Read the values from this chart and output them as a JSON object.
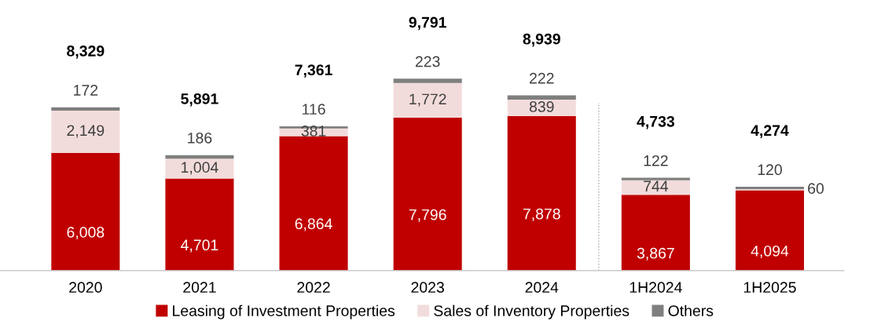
{
  "chart_data": {
    "type": "bar",
    "stacked": true,
    "legend": "bottom",
    "grid": false,
    "categories": [
      "2020",
      "2021",
      "2022",
      "2023",
      "2024",
      "1H2024",
      "1H2025"
    ],
    "series": [
      {
        "name": "Leasing of Investment Properties",
        "color": "#c00000",
        "values": [
          6008,
          4701,
          6864,
          7796,
          7878,
          3867,
          4094
        ],
        "value_labels": [
          "6,008",
          "4,701",
          "6,864",
          "7,796",
          "7,878",
          "3,867",
          "4,094"
        ]
      },
      {
        "name": "Sales of Inventory Properties",
        "color": "#f2dcdb",
        "values": [
          2149,
          1004,
          381,
          1772,
          839,
          744,
          60
        ],
        "value_labels": [
          "2,149",
          "1,004",
          "381",
          "1,772",
          "839",
          "744",
          "60"
        ]
      },
      {
        "name": "Others",
        "color": "#7f7f7f",
        "values": [
          172,
          186,
          116,
          223,
          222,
          122,
          120
        ],
        "value_labels": [
          "172",
          "186",
          "116",
          "223",
          "222",
          "122",
          "120"
        ]
      }
    ],
    "totals": [
      "8,329",
      "5,891",
      "7,361",
      "9,791",
      "8,939",
      "4,733",
      "4,274"
    ]
  }
}
